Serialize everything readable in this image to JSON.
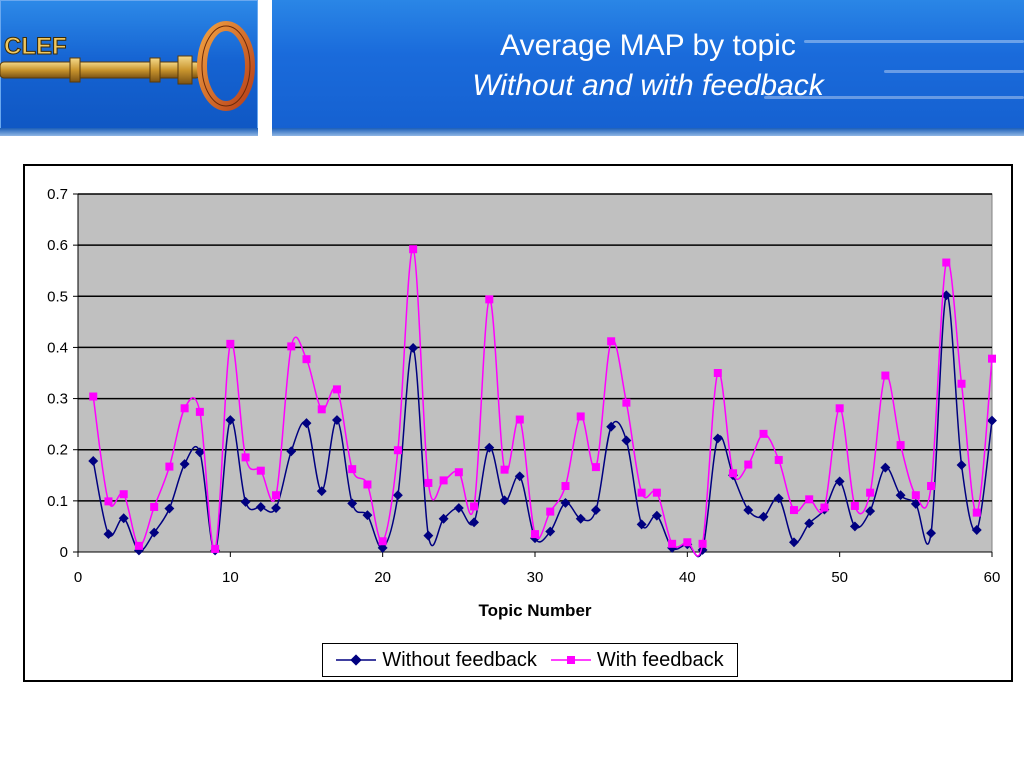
{
  "slide": {
    "title": "Average MAP by topic",
    "subtitle": "Without and with feedback",
    "logo_text": "CLEF"
  },
  "colors": {
    "series_without": "#000080",
    "series_with": "#ff00ff",
    "plot_bg": "#c0c0c0",
    "header_blue": "#1a6bdb"
  },
  "chart_data": {
    "type": "line",
    "title": "",
    "xlabel": "Topic Number",
    "ylabel": "",
    "xlim": [
      0,
      60
    ],
    "ylim": [
      0,
      0.7
    ],
    "xticks": [
      0,
      10,
      20,
      30,
      40,
      50,
      60
    ],
    "xtick_labels": [
      "0",
      "10",
      "20",
      "30",
      "40",
      "50",
      "60"
    ],
    "yticks": [
      0,
      0.1,
      0.2,
      0.3,
      0.4,
      0.5,
      0.6,
      0.7
    ],
    "ytick_labels": [
      "0",
      "0.1",
      "0.2",
      "0.3",
      "0.4",
      "0.5",
      "0.6",
      "0.7"
    ],
    "grid": "horizontal",
    "legend": "bottom",
    "x": [
      1,
      2,
      3,
      4,
      5,
      6,
      7,
      8,
      9,
      10,
      11,
      12,
      13,
      14,
      15,
      16,
      17,
      18,
      19,
      20,
      21,
      22,
      23,
      24,
      25,
      26,
      27,
      28,
      29,
      30,
      31,
      32,
      33,
      34,
      35,
      36,
      37,
      38,
      39,
      40,
      41,
      42,
      43,
      44,
      45,
      46,
      47,
      48,
      49,
      50,
      51,
      52,
      53,
      54,
      55,
      56,
      57,
      58,
      59,
      60
    ],
    "series": [
      {
        "name": "Without feedback",
        "marker": "diamond",
        "values": [
          0.178,
          0.035,
          0.066,
          0.003,
          0.038,
          0.085,
          0.172,
          0.195,
          0.003,
          0.258,
          0.098,
          0.088,
          0.086,
          0.197,
          0.252,
          0.119,
          0.258,
          0.095,
          0.072,
          0.008,
          0.111,
          0.399,
          0.032,
          0.065,
          0.086,
          0.058,
          0.204,
          0.101,
          0.148,
          0.027,
          0.04,
          0.096,
          0.065,
          0.082,
          0.245,
          0.218,
          0.054,
          0.071,
          0.008,
          0.015,
          0.004,
          0.222,
          0.15,
          0.082,
          0.069,
          0.105,
          0.019,
          0.056,
          0.083,
          0.138,
          0.05,
          0.08,
          0.165,
          0.111,
          0.094,
          0.037,
          0.502,
          0.17,
          0.043,
          0.257
        ]
      },
      {
        "name": "With feedback",
        "marker": "square",
        "values": [
          0.304,
          0.099,
          0.113,
          0.012,
          0.088,
          0.167,
          0.281,
          0.274,
          0.006,
          0.407,
          0.185,
          0.159,
          0.111,
          0.402,
          0.377,
          0.279,
          0.318,
          0.162,
          0.132,
          0.021,
          0.199,
          0.592,
          0.135,
          0.14,
          0.156,
          0.089,
          0.494,
          0.161,
          0.259,
          0.035,
          0.079,
          0.129,
          0.265,
          0.166,
          0.412,
          0.292,
          0.116,
          0.116,
          0.016,
          0.019,
          0.016,
          0.35,
          0.154,
          0.171,
          0.231,
          0.18,
          0.082,
          0.103,
          0.087,
          0.281,
          0.09,
          0.116,
          0.345,
          0.209,
          0.111,
          0.129,
          0.566,
          0.329,
          0.077,
          0.378
        ]
      }
    ]
  }
}
